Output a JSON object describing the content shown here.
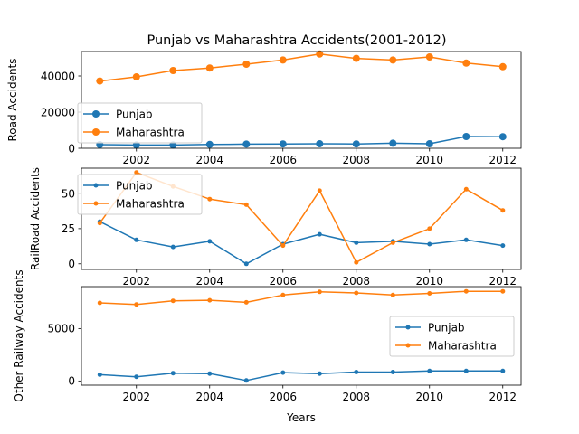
{
  "chart_data": [
    {
      "type": "line",
      "title": "Punjab vs Maharashtra Accidents(2001-2012)",
      "xlabel": "",
      "ylabel": "Road Accidents",
      "x": [
        2001,
        2002,
        2003,
        2004,
        2005,
        2006,
        2007,
        2008,
        2009,
        2010,
        2011,
        2012
      ],
      "xlim": [
        2000.5,
        2012.5
      ],
      "ylim": [
        0,
        53500
      ],
      "yticks": [
        0,
        20000,
        40000
      ],
      "xticks": [
        2002,
        2004,
        2006,
        2008,
        2010,
        2012
      ],
      "marker": "large",
      "legend": "center-left",
      "series": [
        {
          "name": "Punjab",
          "color": "#1f77b4",
          "values": [
            2000,
            1800,
            1800,
            2100,
            2300,
            2400,
            2500,
            2400,
            2800,
            2500,
            6500,
            6400
          ]
        },
        {
          "name": "Maharashtra",
          "color": "#ff7f0e",
          "values": [
            37200,
            39500,
            43000,
            44400,
            46500,
            48800,
            52100,
            49700,
            48800,
            50500,
            47100,
            45100
          ]
        }
      ]
    },
    {
      "type": "line",
      "title": "",
      "xlabel": "",
      "ylabel": "RailRoad Accidents",
      "x": [
        2001,
        2002,
        2003,
        2004,
        2005,
        2006,
        2007,
        2008,
        2009,
        2010,
        2011,
        2012
      ],
      "xlim": [
        2000.5,
        2012.5
      ],
      "ylim": [
        -4,
        68
      ],
      "yticks": [
        0,
        25,
        50
      ],
      "xticks": [
        2002,
        2004,
        2006,
        2008,
        2010,
        2012
      ],
      "marker": "small",
      "legend": "top-left",
      "series": [
        {
          "name": "Punjab",
          "color": "#1f77b4",
          "values": [
            30,
            17,
            12,
            16,
            0,
            14,
            21,
            15,
            16,
            14,
            17,
            13
          ]
        },
        {
          "name": "Maharashtra",
          "color": "#ff7f0e",
          "values": [
            29,
            65,
            55,
            46,
            42,
            13,
            52,
            1,
            15,
            25,
            53,
            38
          ]
        }
      ]
    },
    {
      "type": "line",
      "title": "",
      "xlabel": "Years",
      "ylabel": "Other Railway Accidents",
      "x": [
        2001,
        2002,
        2003,
        2004,
        2005,
        2006,
        2007,
        2008,
        2009,
        2010,
        2011,
        2012
      ],
      "xlim": [
        2000.5,
        2012.5
      ],
      "ylim": [
        -400,
        9000
      ],
      "yticks": [
        0,
        5000
      ],
      "xticks": [
        2002,
        2004,
        2006,
        2008,
        2010,
        2012
      ],
      "marker": "small",
      "legend": "center-right",
      "series": [
        {
          "name": "Punjab",
          "color": "#1f77b4",
          "values": [
            600,
            400,
            750,
            700,
            50,
            800,
            700,
            850,
            850,
            950,
            950,
            950
          ]
        },
        {
          "name": "Maharashtra",
          "color": "#ff7f0e",
          "values": [
            7450,
            7300,
            7650,
            7700,
            7500,
            8200,
            8500,
            8400,
            8200,
            8350,
            8550,
            8550
          ]
        }
      ]
    }
  ]
}
